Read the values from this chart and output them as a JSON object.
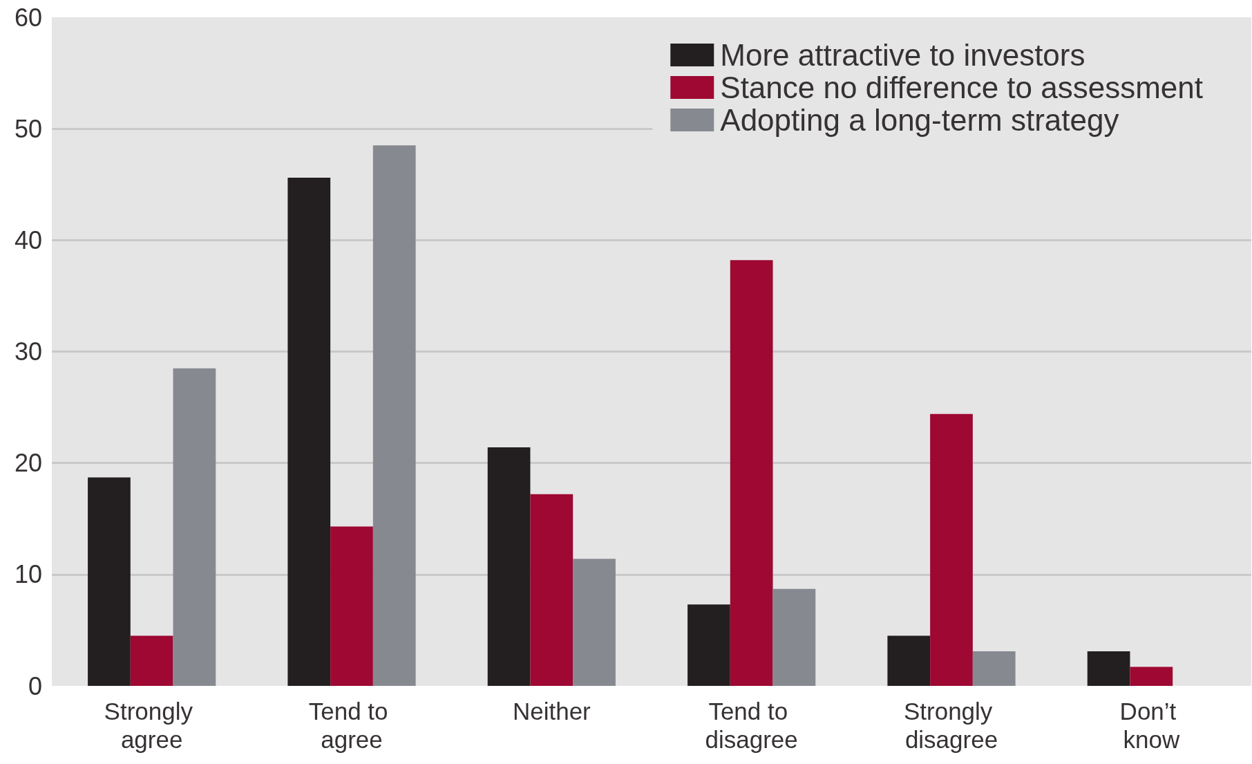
{
  "chart_data": {
    "type": "bar",
    "categories": [
      "Strongly agree",
      "Tend to agree",
      "Neither",
      "Tend to disagree",
      "Strongly disagree",
      "Don’t know"
    ],
    "series": [
      {
        "name": "More attractive to investors",
        "color": "#231f20",
        "values": [
          18.7,
          45.6,
          21.4,
          7.3,
          4.5,
          3.1
        ]
      },
      {
        "name": "Stance no difference to assessment",
        "color": "#9e0832",
        "values": [
          4.5,
          14.3,
          17.2,
          38.2,
          24.4,
          1.7
        ]
      },
      {
        "name": "Adopting a long-term strategy",
        "color": "#868990",
        "values": [
          28.5,
          48.5,
          11.4,
          8.7,
          3.1,
          null
        ]
      }
    ],
    "ylim": [
      0,
      60
    ],
    "yticks": [
      0,
      10,
      20,
      30,
      40,
      50,
      60
    ],
    "grid": "y",
    "legend": "top right"
  }
}
